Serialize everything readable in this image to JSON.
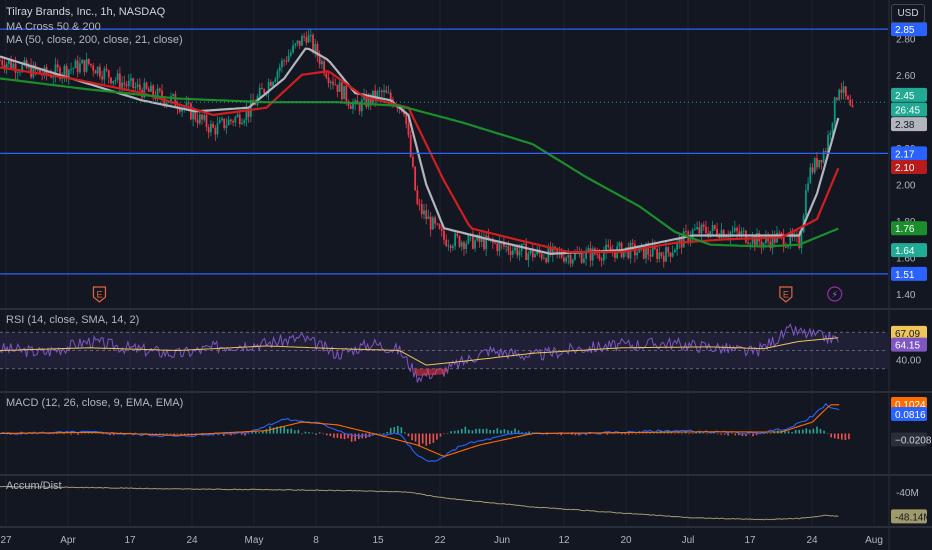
{
  "header": {
    "title": "Tilray Brands, Inc., 1h, NASDAQ",
    "indicator1": "MA Cross 50 & 200",
    "indicator2": "MA (50, close, 200, close, 21, close)",
    "currency": "USD"
  },
  "colors": {
    "background": "#131722",
    "grid": "#1f2331",
    "up": "#089981",
    "down": "#f23645",
    "ma_fast": "#b2b5be",
    "ma_mid": "#d11f1f",
    "ma_slow": "#1b8e2b",
    "hline": "#2962ff",
    "rsi": "#7e57c2",
    "rsi_ma": "#f0c659",
    "macd": "#2962ff",
    "signal": "#ff6d00",
    "ad": "#a09a6b"
  },
  "chart_data": [
    {
      "type": "candlestick",
      "title": "Tilray Brands, Inc., 1h, NASDAQ",
      "ylim": [
        1.4,
        2.9
      ],
      "y_ticks": [
        "2.80",
        "2.60",
        "2.20",
        "2.00",
        "1.80",
        "1.60",
        "1.40"
      ],
      "x_ticks": [
        "27",
        "Apr",
        "17",
        "24",
        "May",
        "8",
        "15",
        "22",
        "Jun",
        "12",
        "20",
        "Jul",
        "17",
        "24",
        "Aug"
      ],
      "close_path": [
        [
          0,
          2.68
        ],
        [
          0.05,
          2.6
        ],
        [
          0.1,
          2.66
        ],
        [
          0.14,
          2.55
        ],
        [
          0.2,
          2.45
        ],
        [
          0.24,
          2.3
        ],
        [
          0.28,
          2.4
        ],
        [
          0.32,
          2.68
        ],
        [
          0.345,
          2.82
        ],
        [
          0.37,
          2.6
        ],
        [
          0.4,
          2.42
        ],
        [
          0.43,
          2.5
        ],
        [
          0.455,
          2.42
        ],
        [
          0.47,
          1.88
        ],
        [
          0.5,
          1.7
        ],
        [
          0.55,
          1.68
        ],
        [
          0.6,
          1.62
        ],
        [
          0.65,
          1.61
        ],
        [
          0.7,
          1.64
        ],
        [
          0.75,
          1.62
        ],
        [
          0.78,
          1.74
        ],
        [
          0.81,
          1.75
        ],
        [
          0.84,
          1.72
        ],
        [
          0.86,
          1.68
        ],
        [
          0.875,
          1.71
        ],
        [
          0.9,
          1.68
        ],
        [
          0.91,
          2.05
        ],
        [
          0.93,
          2.2
        ],
        [
          0.945,
          2.55
        ],
        [
          0.96,
          2.38
        ]
      ],
      "series": [
        {
          "name": "MA 50",
          "path": [
            [
              0,
              2.7
            ],
            [
              0.08,
              2.58
            ],
            [
              0.16,
              2.46
            ],
            [
              0.22,
              2.4
            ],
            [
              0.28,
              2.42
            ],
            [
              0.32,
              2.58
            ],
            [
              0.345,
              2.75
            ],
            [
              0.37,
              2.68
            ],
            [
              0.4,
              2.5
            ],
            [
              0.44,
              2.46
            ],
            [
              0.46,
              2.38
            ],
            [
              0.48,
              2.0
            ],
            [
              0.5,
              1.76
            ],
            [
              0.55,
              1.7
            ],
            [
              0.62,
              1.62
            ],
            [
              0.7,
              1.64
            ],
            [
              0.78,
              1.72
            ],
            [
              0.85,
              1.72
            ],
            [
              0.9,
              1.72
            ],
            [
              0.92,
              1.95
            ],
            [
              0.945,
              2.38
            ]
          ]
        },
        {
          "name": "MA 21",
          "path": [
            [
              0,
              2.64
            ],
            [
              0.08,
              2.58
            ],
            [
              0.16,
              2.5
            ],
            [
              0.24,
              2.38
            ],
            [
              0.3,
              2.42
            ],
            [
              0.34,
              2.6
            ],
            [
              0.37,
              2.62
            ],
            [
              0.41,
              2.48
            ],
            [
              0.46,
              2.42
            ],
            [
              0.5,
              2.02
            ],
            [
              0.53,
              1.76
            ],
            [
              0.58,
              1.7
            ],
            [
              0.64,
              1.63
            ],
            [
              0.7,
              1.63
            ],
            [
              0.76,
              1.68
            ],
            [
              0.82,
              1.7
            ],
            [
              0.88,
              1.71
            ],
            [
              0.92,
              1.81
            ],
            [
              0.945,
              2.1
            ]
          ]
        },
        {
          "name": "MA 200",
          "path": [
            [
              0,
              2.58
            ],
            [
              0.1,
              2.52
            ],
            [
              0.2,
              2.47
            ],
            [
              0.3,
              2.45
            ],
            [
              0.38,
              2.45
            ],
            [
              0.45,
              2.43
            ],
            [
              0.52,
              2.34
            ],
            [
              0.6,
              2.22
            ],
            [
              0.66,
              2.04
            ],
            [
              0.72,
              1.88
            ],
            [
              0.76,
              1.74
            ],
            [
              0.8,
              1.67
            ],
            [
              0.86,
              1.66
            ],
            [
              0.9,
              1.67
            ],
            [
              0.945,
              1.76
            ]
          ]
        }
      ],
      "price_lines": [
        2.85,
        2.17,
        1.51
      ],
      "price_labels": [
        {
          "value": "2.85",
          "color": "#2962ff"
        },
        {
          "value": "2.45",
          "color": "#22ab94"
        },
        {
          "value": "26:45",
          "color": "#22ab94"
        },
        {
          "value": "2.38",
          "color": "#b2b5be"
        },
        {
          "value": "2.17",
          "color": "#2962ff"
        },
        {
          "value": "2.10",
          "color": "#b71c1c"
        },
        {
          "value": "1.76",
          "color": "#1b8e2b"
        },
        {
          "value": "1.64",
          "color": "#22ab94"
        },
        {
          "value": "1.51",
          "color": "#2962ff"
        }
      ],
      "events": [
        {
          "kind": "earnings",
          "glyph": "E",
          "x": 0.112
        },
        {
          "kind": "earnings",
          "glyph": "E",
          "x": 0.885
        },
        {
          "kind": "dividend",
          "glyph": "⚡",
          "x": 0.94
        }
      ]
    },
    {
      "type": "line",
      "title": "RSI (14, close, SMA, 14, 2)",
      "ylim": [
        10,
        90
      ],
      "levels": [
        70,
        50,
        30
      ],
      "axis_label": "40.00",
      "axis_value": 40,
      "values_labels": [
        {
          "value": "67.09",
          "color": "#f0c659"
        },
        {
          "value": "64.15",
          "color": "#7e57c2"
        }
      ],
      "series": [
        {
          "name": "RSI",
          "path": [
            [
              0,
              52
            ],
            [
              0.05,
              48
            ],
            [
              0.1,
              60
            ],
            [
              0.15,
              52
            ],
            [
              0.2,
              46
            ],
            [
              0.25,
              55
            ],
            [
              0.3,
              58
            ],
            [
              0.34,
              64
            ],
            [
              0.38,
              46
            ],
            [
              0.42,
              58
            ],
            [
              0.45,
              50
            ],
            [
              0.47,
              22
            ],
            [
              0.5,
              28
            ],
            [
              0.55,
              50
            ],
            [
              0.6,
              44
            ],
            [
              0.65,
              52
            ],
            [
              0.7,
              56
            ],
            [
              0.75,
              58
            ],
            [
              0.8,
              54
            ],
            [
              0.85,
              48
            ],
            [
              0.89,
              72
            ],
            [
              0.92,
              66
            ],
            [
              0.945,
              62
            ]
          ]
        },
        {
          "name": "SMA",
          "path": [
            [
              0,
              50
            ],
            [
              0.1,
              53
            ],
            [
              0.2,
              50
            ],
            [
              0.3,
              55
            ],
            [
              0.38,
              52
            ],
            [
              0.45,
              50
            ],
            [
              0.48,
              34
            ],
            [
              0.52,
              38
            ],
            [
              0.6,
              47
            ],
            [
              0.7,
              53
            ],
            [
              0.8,
              54
            ],
            [
              0.86,
              52
            ],
            [
              0.9,
              60
            ],
            [
              0.945,
              64
            ]
          ]
        }
      ]
    },
    {
      "type": "line",
      "title": "MACD (12, 26, close, 9, EMA, EMA)",
      "ylim": [
        -0.12,
        0.12
      ],
      "values_labels": [
        {
          "value": "0.1024",
          "color": "#ff6d00"
        },
        {
          "value": "0.0816",
          "color": "#2962ff"
        },
        {
          "value": "−0.0208",
          "color": "#b2b5be"
        }
      ],
      "series": [
        {
          "name": "MACD",
          "path": [
            [
              0,
              0.0
            ],
            [
              0.1,
              0.005
            ],
            [
              0.2,
              -0.01
            ],
            [
              0.28,
              0.005
            ],
            [
              0.32,
              0.05
            ],
            [
              0.36,
              0.035
            ],
            [
              0.4,
              -0.01
            ],
            [
              0.45,
              0.0
            ],
            [
              0.47,
              -0.08
            ],
            [
              0.49,
              -0.1
            ],
            [
              0.52,
              -0.04
            ],
            [
              0.58,
              0.0
            ],
            [
              0.66,
              0.0
            ],
            [
              0.76,
              0.01
            ],
            [
              0.85,
              0.0
            ],
            [
              0.89,
              0.02
            ],
            [
              0.915,
              0.06
            ],
            [
              0.93,
              0.1
            ],
            [
              0.945,
              0.08
            ]
          ]
        },
        {
          "name": "Signal",
          "path": [
            [
              0,
              0.0
            ],
            [
              0.1,
              0.004
            ],
            [
              0.2,
              -0.006
            ],
            [
              0.3,
              0.01
            ],
            [
              0.34,
              0.04
            ],
            [
              0.38,
              0.03
            ],
            [
              0.42,
              0.0
            ],
            [
              0.47,
              -0.04
            ],
            [
              0.5,
              -0.08
            ],
            [
              0.54,
              -0.04
            ],
            [
              0.6,
              0.0
            ],
            [
              0.7,
              0.003
            ],
            [
              0.8,
              0.006
            ],
            [
              0.88,
              0.005
            ],
            [
              0.915,
              0.04
            ],
            [
              0.935,
              0.1
            ],
            [
              0.945,
              0.1
            ]
          ]
        }
      ]
    },
    {
      "type": "line",
      "title": "Accum/Dist",
      "ylim": [
        -50,
        -36
      ],
      "axis_label": "-40M",
      "axis_value": -40,
      "values_labels": [
        {
          "value": "-48.14M",
          "color": "#a09a6b"
        }
      ],
      "series": [
        {
          "name": "A/D",
          "path": [
            [
              0,
              -38.2
            ],
            [
              0.1,
              -38.5
            ],
            [
              0.2,
              -39.0
            ],
            [
              0.3,
              -39.2
            ],
            [
              0.4,
              -39.6
            ],
            [
              0.46,
              -40.0
            ],
            [
              0.5,
              -42.0
            ],
            [
              0.6,
              -45.0
            ],
            [
              0.7,
              -47.0
            ],
            [
              0.78,
              -48.6
            ],
            [
              0.86,
              -49.2
            ],
            [
              0.9,
              -48.8
            ],
            [
              0.93,
              -47.8
            ],
            [
              0.945,
              -48.14
            ]
          ]
        }
      ]
    }
  ]
}
